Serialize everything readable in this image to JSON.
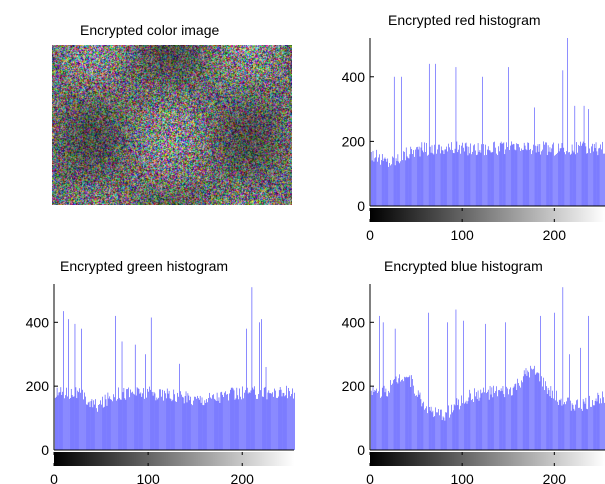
{
  "image_panel": {
    "title": "Encrypted color image"
  },
  "colors": {
    "bars": "#1f1fff",
    "axis": "#000000"
  },
  "chart_data": [
    {
      "type": "bar",
      "title": "Encrypted red histogram",
      "xlabel": "",
      "ylabel": "",
      "xlim": [
        0,
        255
      ],
      "ylim": [
        0,
        520
      ],
      "xticks": [
        0,
        100,
        200
      ],
      "yticks": [
        0,
        200,
        400
      ],
      "grid": false,
      "colorbar": "grayscale 0-255",
      "baseline": 178,
      "dips": [
        {
          "center": 20,
          "width": 20,
          "depth": 40
        }
      ],
      "spikes": [
        [
          26,
          400
        ],
        [
          34,
          400
        ],
        [
          64,
          440
        ],
        [
          71,
          440
        ],
        [
          93,
          430
        ],
        [
          122,
          400
        ],
        [
          150,
          430
        ],
        [
          178,
          305
        ],
        [
          209,
          420
        ],
        [
          214,
          520
        ],
        [
          222,
          310
        ],
        [
          232,
          310
        ],
        [
          237,
          300
        ]
      ]
    },
    {
      "type": "bar",
      "title": "Encrypted green histogram",
      "xlabel": "",
      "ylabel": "",
      "xlim": [
        0,
        255
      ],
      "ylim": [
        0,
        520
      ],
      "xticks": [
        0,
        100,
        200
      ],
      "yticks": [
        0,
        200,
        400
      ],
      "grid": false,
      "colorbar": "grayscale 0-255",
      "baseline": 180,
      "dips": [
        {
          "center": 45,
          "width": 14,
          "depth": 40
        },
        {
          "center": 150,
          "width": 35,
          "depth": 20
        }
      ],
      "spikes": [
        [
          10,
          435
        ],
        [
          15,
          410
        ],
        [
          22,
          395
        ],
        [
          29,
          380
        ],
        [
          65,
          420
        ],
        [
          72,
          340
        ],
        [
          86,
          330
        ],
        [
          97,
          300
        ],
        [
          103,
          415
        ],
        [
          133,
          270
        ],
        [
          204,
          380
        ],
        [
          210,
          510
        ],
        [
          218,
          400
        ],
        [
          220,
          410
        ],
        [
          225,
          260
        ]
      ]
    },
    {
      "type": "bar",
      "title": "Encrypted blue histogram",
      "xlabel": "",
      "ylabel": "",
      "xlim": [
        0,
        255
      ],
      "ylim": [
        0,
        520
      ],
      "xticks": [
        0,
        100,
        200
      ],
      "yticks": [
        0,
        200,
        400
      ],
      "grid": false,
      "colorbar": "grayscale 0-255",
      "baseline": 180,
      "dips": [
        {
          "center": 75,
          "width": 25,
          "depth": 70
        },
        {
          "center": 225,
          "width": 25,
          "depth": 40
        }
      ],
      "bumps": [
        {
          "center": 38,
          "width": 14,
          "height": 65
        },
        {
          "center": 175,
          "width": 15,
          "height": 65
        }
      ],
      "spikes": [
        [
          10,
          420
        ],
        [
          14,
          400
        ],
        [
          27,
          380
        ],
        [
          63,
          430
        ],
        [
          84,
          400
        ],
        [
          93,
          440
        ],
        [
          101,
          405
        ],
        [
          125,
          395
        ],
        [
          147,
          400
        ],
        [
          185,
          420
        ],
        [
          200,
          430
        ],
        [
          209,
          510
        ],
        [
          216,
          300
        ],
        [
          228,
          320
        ],
        [
          237,
          420
        ]
      ]
    }
  ]
}
